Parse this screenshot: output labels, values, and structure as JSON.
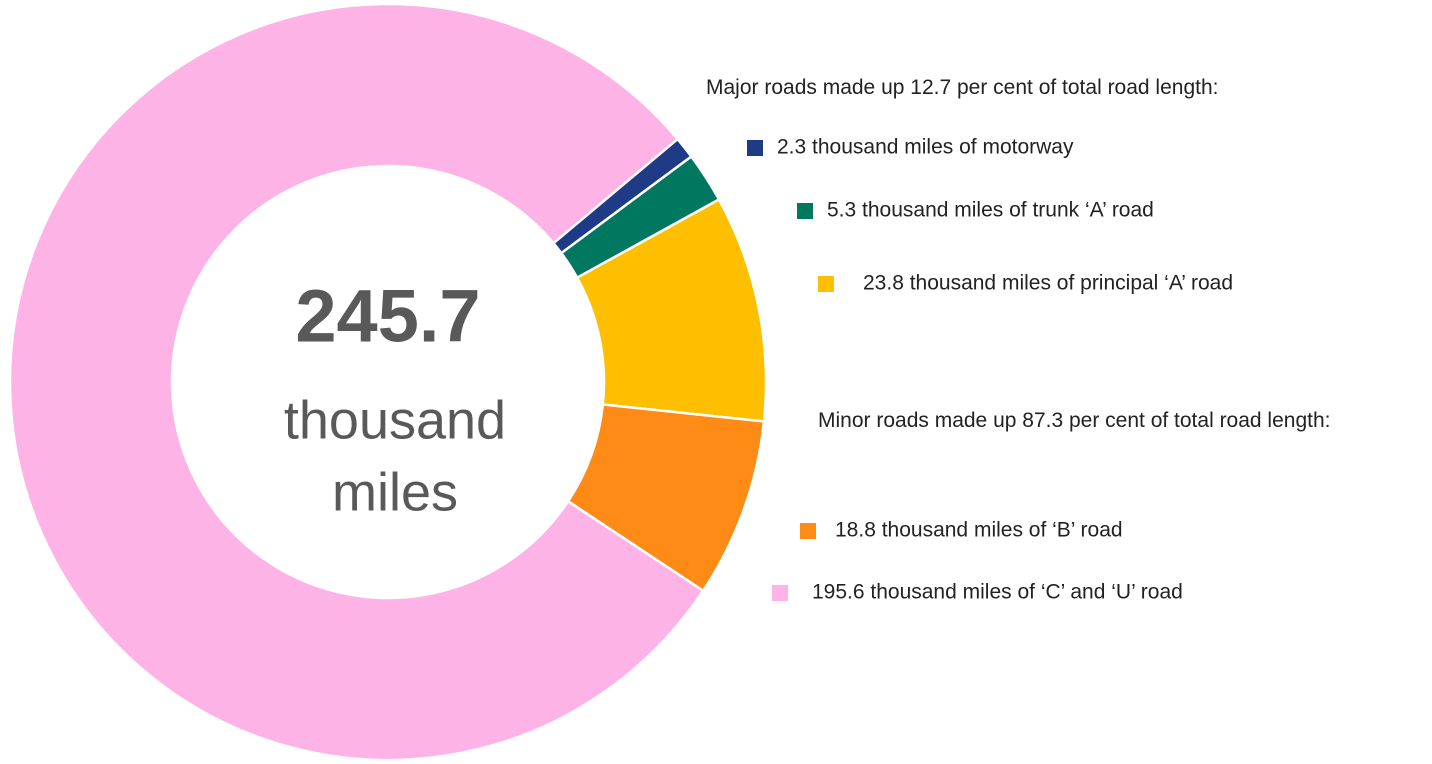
{
  "chart_data": {
    "type": "donut",
    "center_value": 245.7,
    "center_unit_lines": [
      "thousand",
      "miles"
    ],
    "annotations": [
      "Major roads made up 12.7 per cent of total road length:",
      "Minor roads made up 87.3 per cent of total road length:"
    ],
    "categories": [
      "2.3 thousand miles of motorway",
      "5.3 thousand miles of trunk ‘A’ road",
      "23.8 thousand miles of principal ‘A’ road",
      "18.8 thousand miles of ‘B’ road",
      "195.6 thousand miles of ‘C’ and ‘U’ road"
    ],
    "values": [
      2.3,
      5.3,
      23.8,
      18.8,
      195.6
    ],
    "colors": [
      "#1f3b86",
      "#00775f",
      "#fdbf00",
      "#fd8b16",
      "#fdb3e6"
    ]
  }
}
